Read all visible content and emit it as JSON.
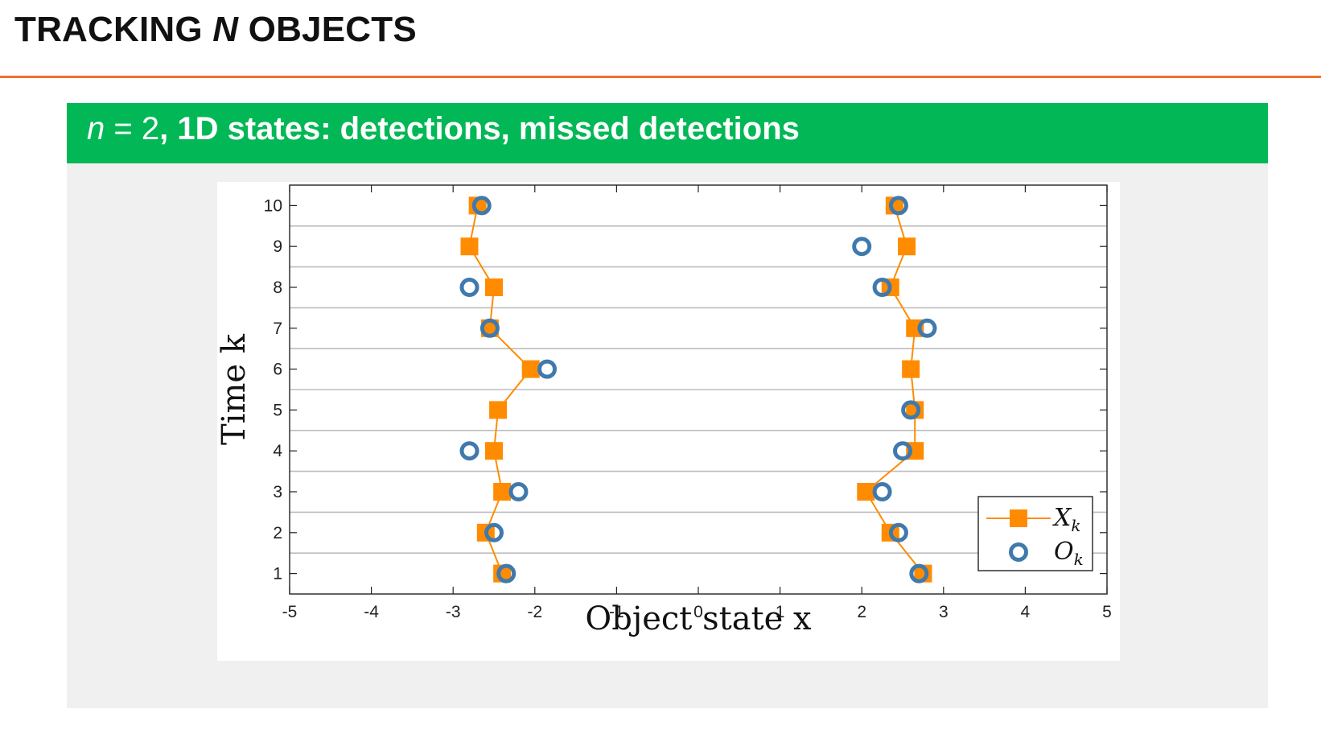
{
  "slide": {
    "title_before": "TRACKING ",
    "title_italic": "N",
    "title_after": " OBJECTS"
  },
  "block": {
    "title_italic": "n",
    "title_math": " = 2",
    "title_bold": ", 1D states: detections, missed detections"
  },
  "colors": {
    "accent_rule": "#e8742e",
    "block_header": "#02b856",
    "state_series": "#ff8c00",
    "measurement_series": "#3f79ad"
  },
  "chart_data": {
    "type": "scatter",
    "xlabel": "Object state x",
    "ylabel": "Time k",
    "xlim": [
      -5,
      5
    ],
    "ylim": [
      0.5,
      10.5
    ],
    "xticks": [
      -5,
      -4,
      -3,
      -2,
      -1,
      0,
      1,
      2,
      3,
      4,
      5
    ],
    "yticks": [
      1,
      2,
      3,
      4,
      5,
      6,
      7,
      8,
      9,
      10
    ],
    "grid": "horizontal",
    "legend_position": "bottom-right",
    "series": [
      {
        "name": "X_k",
        "legend_main": "X",
        "legend_sub": "k",
        "marker": "square",
        "line": true,
        "tracks": [
          {
            "points": [
              {
                "k": 1,
                "x": -2.4
              },
              {
                "k": 2,
                "x": -2.6
              },
              {
                "k": 3,
                "x": -2.4
              },
              {
                "k": 4,
                "x": -2.5
              },
              {
                "k": 5,
                "x": -2.45
              },
              {
                "k": 6,
                "x": -2.05
              },
              {
                "k": 7,
                "x": -2.55
              },
              {
                "k": 8,
                "x": -2.5
              },
              {
                "k": 9,
                "x": -2.8
              },
              {
                "k": 10,
                "x": -2.7
              }
            ]
          },
          {
            "points": [
              {
                "k": 1,
                "x": 2.75
              },
              {
                "k": 2,
                "x": 2.35
              },
              {
                "k": 3,
                "x": 2.05
              },
              {
                "k": 4,
                "x": 2.65
              },
              {
                "k": 5,
                "x": 2.65
              },
              {
                "k": 6,
                "x": 2.6
              },
              {
                "k": 7,
                "x": 2.65
              },
              {
                "k": 8,
                "x": 2.35
              },
              {
                "k": 9,
                "x": 2.55
              },
              {
                "k": 10,
                "x": 2.4
              }
            ]
          }
        ]
      },
      {
        "name": "O_k",
        "legend_main": "O",
        "legend_sub": "k",
        "marker": "ring",
        "line": false,
        "points": [
          {
            "k": 1,
            "x": -2.35
          },
          {
            "k": 1,
            "x": 2.7
          },
          {
            "k": 2,
            "x": -2.5
          },
          {
            "k": 2,
            "x": 2.45
          },
          {
            "k": 3,
            "x": -2.2
          },
          {
            "k": 3,
            "x": 2.25
          },
          {
            "k": 4,
            "x": -2.8
          },
          {
            "k": 4,
            "x": 2.5
          },
          {
            "k": 5,
            "x": 2.6
          },
          {
            "k": 6,
            "x": -1.85
          },
          {
            "k": 7,
            "x": -2.55
          },
          {
            "k": 7,
            "x": 2.8
          },
          {
            "k": 8,
            "x": -2.8
          },
          {
            "k": 8,
            "x": 2.25
          },
          {
            "k": 9,
            "x": 2.0
          },
          {
            "k": 10,
            "x": -2.65
          },
          {
            "k": 10,
            "x": 2.45
          }
        ]
      }
    ]
  }
}
